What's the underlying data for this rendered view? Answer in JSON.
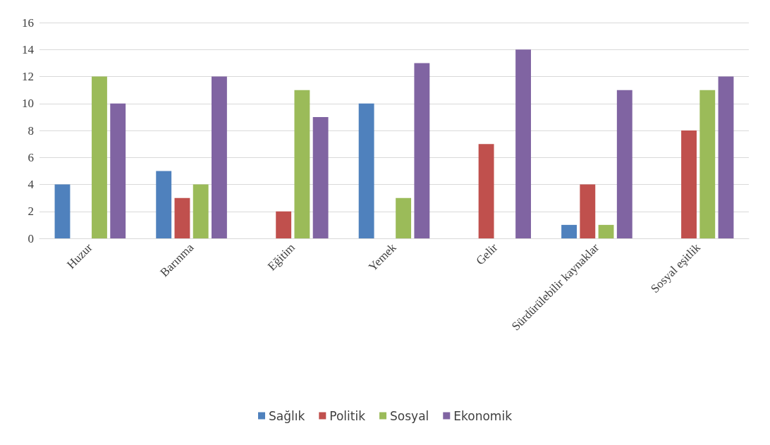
{
  "chart_data": {
    "type": "bar",
    "categories": [
      "Huzur",
      "Barınma",
      "Eğitim",
      "Yemek",
      "Gelir",
      "Sürdürülebilir kaynaklar",
      "Sosyal eşitlik"
    ],
    "series": [
      {
        "name": "Sağlık",
        "color": "#4f81bd",
        "values": [
          4,
          5,
          0,
          10,
          0,
          1,
          0
        ]
      },
      {
        "name": "Politik",
        "color": "#c0504d",
        "values": [
          0,
          3,
          2,
          0,
          7,
          4,
          8
        ]
      },
      {
        "name": "Sosyal",
        "color": "#9bbb59",
        "values": [
          12,
          4,
          11,
          3,
          0,
          1,
          11
        ]
      },
      {
        "name": "Ekonomik",
        "color": "#8064a2",
        "values": [
          10,
          12,
          9,
          13,
          14,
          11,
          12
        ]
      }
    ],
    "ylim": [
      0,
      16
    ],
    "yticks": [
      0,
      2,
      4,
      6,
      8,
      10,
      12,
      14,
      16
    ],
    "grid": "y",
    "legend": "bottom"
  }
}
